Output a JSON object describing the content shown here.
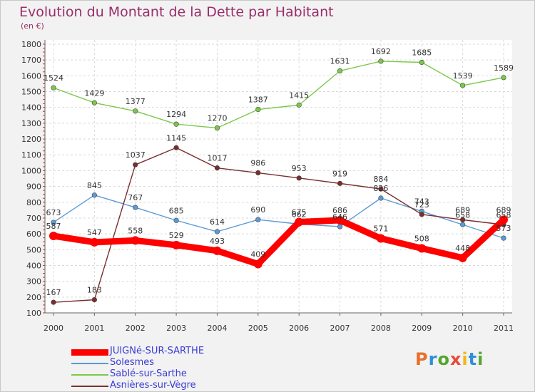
{
  "title": "Evolution du Montant de la Dette par Habitant",
  "subtitle": "(en €)",
  "logo": {
    "text": "Proxiti",
    "letter_colors": [
      "#e8702a",
      "#2f8fd8",
      "#55a630",
      "#e84a3a",
      "#f2b51b",
      "#2f8fd8",
      "#55a630"
    ]
  },
  "chart_data": {
    "type": "line",
    "title": "Evolution du Montant de la Dette par Habitant",
    "subtitle": "(en €)",
    "x": [
      "2000",
      "2001",
      "2002",
      "2003",
      "2004",
      "2005",
      "2006",
      "2007",
      "2008",
      "2009",
      "2010",
      "2011"
    ],
    "ylim": [
      100,
      1800
    ],
    "yticks": [
      100,
      200,
      300,
      400,
      500,
      600,
      700,
      800,
      900,
      1000,
      1100,
      1200,
      1300,
      1400,
      1500,
      1600,
      1700,
      1800
    ],
    "grid": true,
    "legend_position": "bottom-left",
    "series": [
      {
        "name": "JUIGNé-SUR-SARTHE",
        "color": "#ff0000",
        "values": [
          587,
          547,
          558,
          529,
          493,
          409,
          675,
          686,
          571,
          508,
          448,
          689
        ]
      },
      {
        "name": "Solesmes",
        "color": "#5b9bd5",
        "values": [
          673,
          845,
          767,
          685,
          614,
          690,
          662,
          646,
          826,
          743,
          658,
          573
        ]
      },
      {
        "name": "Sablé-sur-Sarthe",
        "color": "#7cc84a",
        "values": [
          1524,
          1429,
          1377,
          1294,
          1270,
          1387,
          1415,
          1631,
          1692,
          1685,
          1539,
          1589
        ]
      },
      {
        "name": "Asnières-sur-Vègre",
        "color": "#7a2e2e",
        "values": [
          167,
          183,
          1037,
          1145,
          1017,
          986,
          953,
          919,
          884,
          723,
          689,
          658
        ]
      }
    ]
  }
}
